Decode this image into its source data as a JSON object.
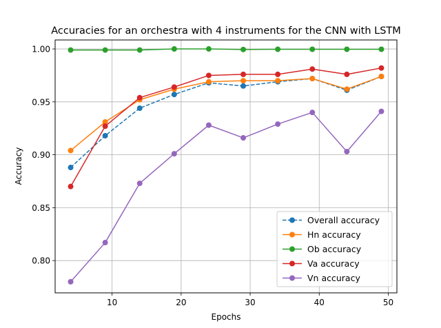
{
  "chart_data": {
    "type": "line",
    "title": "Accuracies for an orchestra with 4 instruments for the CNN with LSTM",
    "xlabel": "Epochs",
    "ylabel": "Accuracy",
    "xlim": [
      1.75,
      51.25
    ],
    "ylim": [
      0.7695,
      1.0085
    ],
    "xticks": [
      10,
      20,
      30,
      40,
      50
    ],
    "xtick_labels": [
      "10",
      "20",
      "30",
      "40",
      "50"
    ],
    "yticks": [
      0.8,
      0.85,
      0.9,
      0.95,
      1.0
    ],
    "ytick_labels": [
      "0.80",
      "0.85",
      "0.90",
      "0.95",
      "1.00"
    ],
    "grid": true,
    "legend_position": "lower-right",
    "x": [
      4,
      9,
      14,
      19,
      24,
      29,
      34,
      39,
      44,
      49
    ],
    "series": [
      {
        "name": "Overall accuracy",
        "color": "#1f77b4",
        "linestyle": "dashed",
        "values": [
          0.888,
          0.918,
          0.944,
          0.957,
          0.968,
          0.965,
          0.969,
          0.972,
          0.961,
          0.974
        ]
      },
      {
        "name": "Hn accuracy",
        "color": "#ff7f0e",
        "linestyle": "solid",
        "values": [
          0.904,
          0.931,
          0.952,
          0.962,
          0.969,
          0.97,
          0.97,
          0.972,
          0.962,
          0.974
        ]
      },
      {
        "name": "Ob accuracy",
        "color": "#2ca02c",
        "linestyle": "solid",
        "values": [
          0.999,
          0.999,
          0.999,
          1.0,
          1.0,
          0.9995,
          0.9997,
          0.9997,
          0.9997,
          0.9997
        ]
      },
      {
        "name": "Va accuracy",
        "color": "#d62728",
        "linestyle": "solid",
        "values": [
          0.87,
          0.927,
          0.954,
          0.964,
          0.975,
          0.976,
          0.976,
          0.981,
          0.976,
          0.982
        ]
      },
      {
        "name": "Vn accuracy",
        "color": "#9467bd",
        "linestyle": "solid",
        "values": [
          0.78,
          0.817,
          0.873,
          0.901,
          0.928,
          0.916,
          0.929,
          0.94,
          0.903,
          0.941
        ]
      }
    ]
  }
}
